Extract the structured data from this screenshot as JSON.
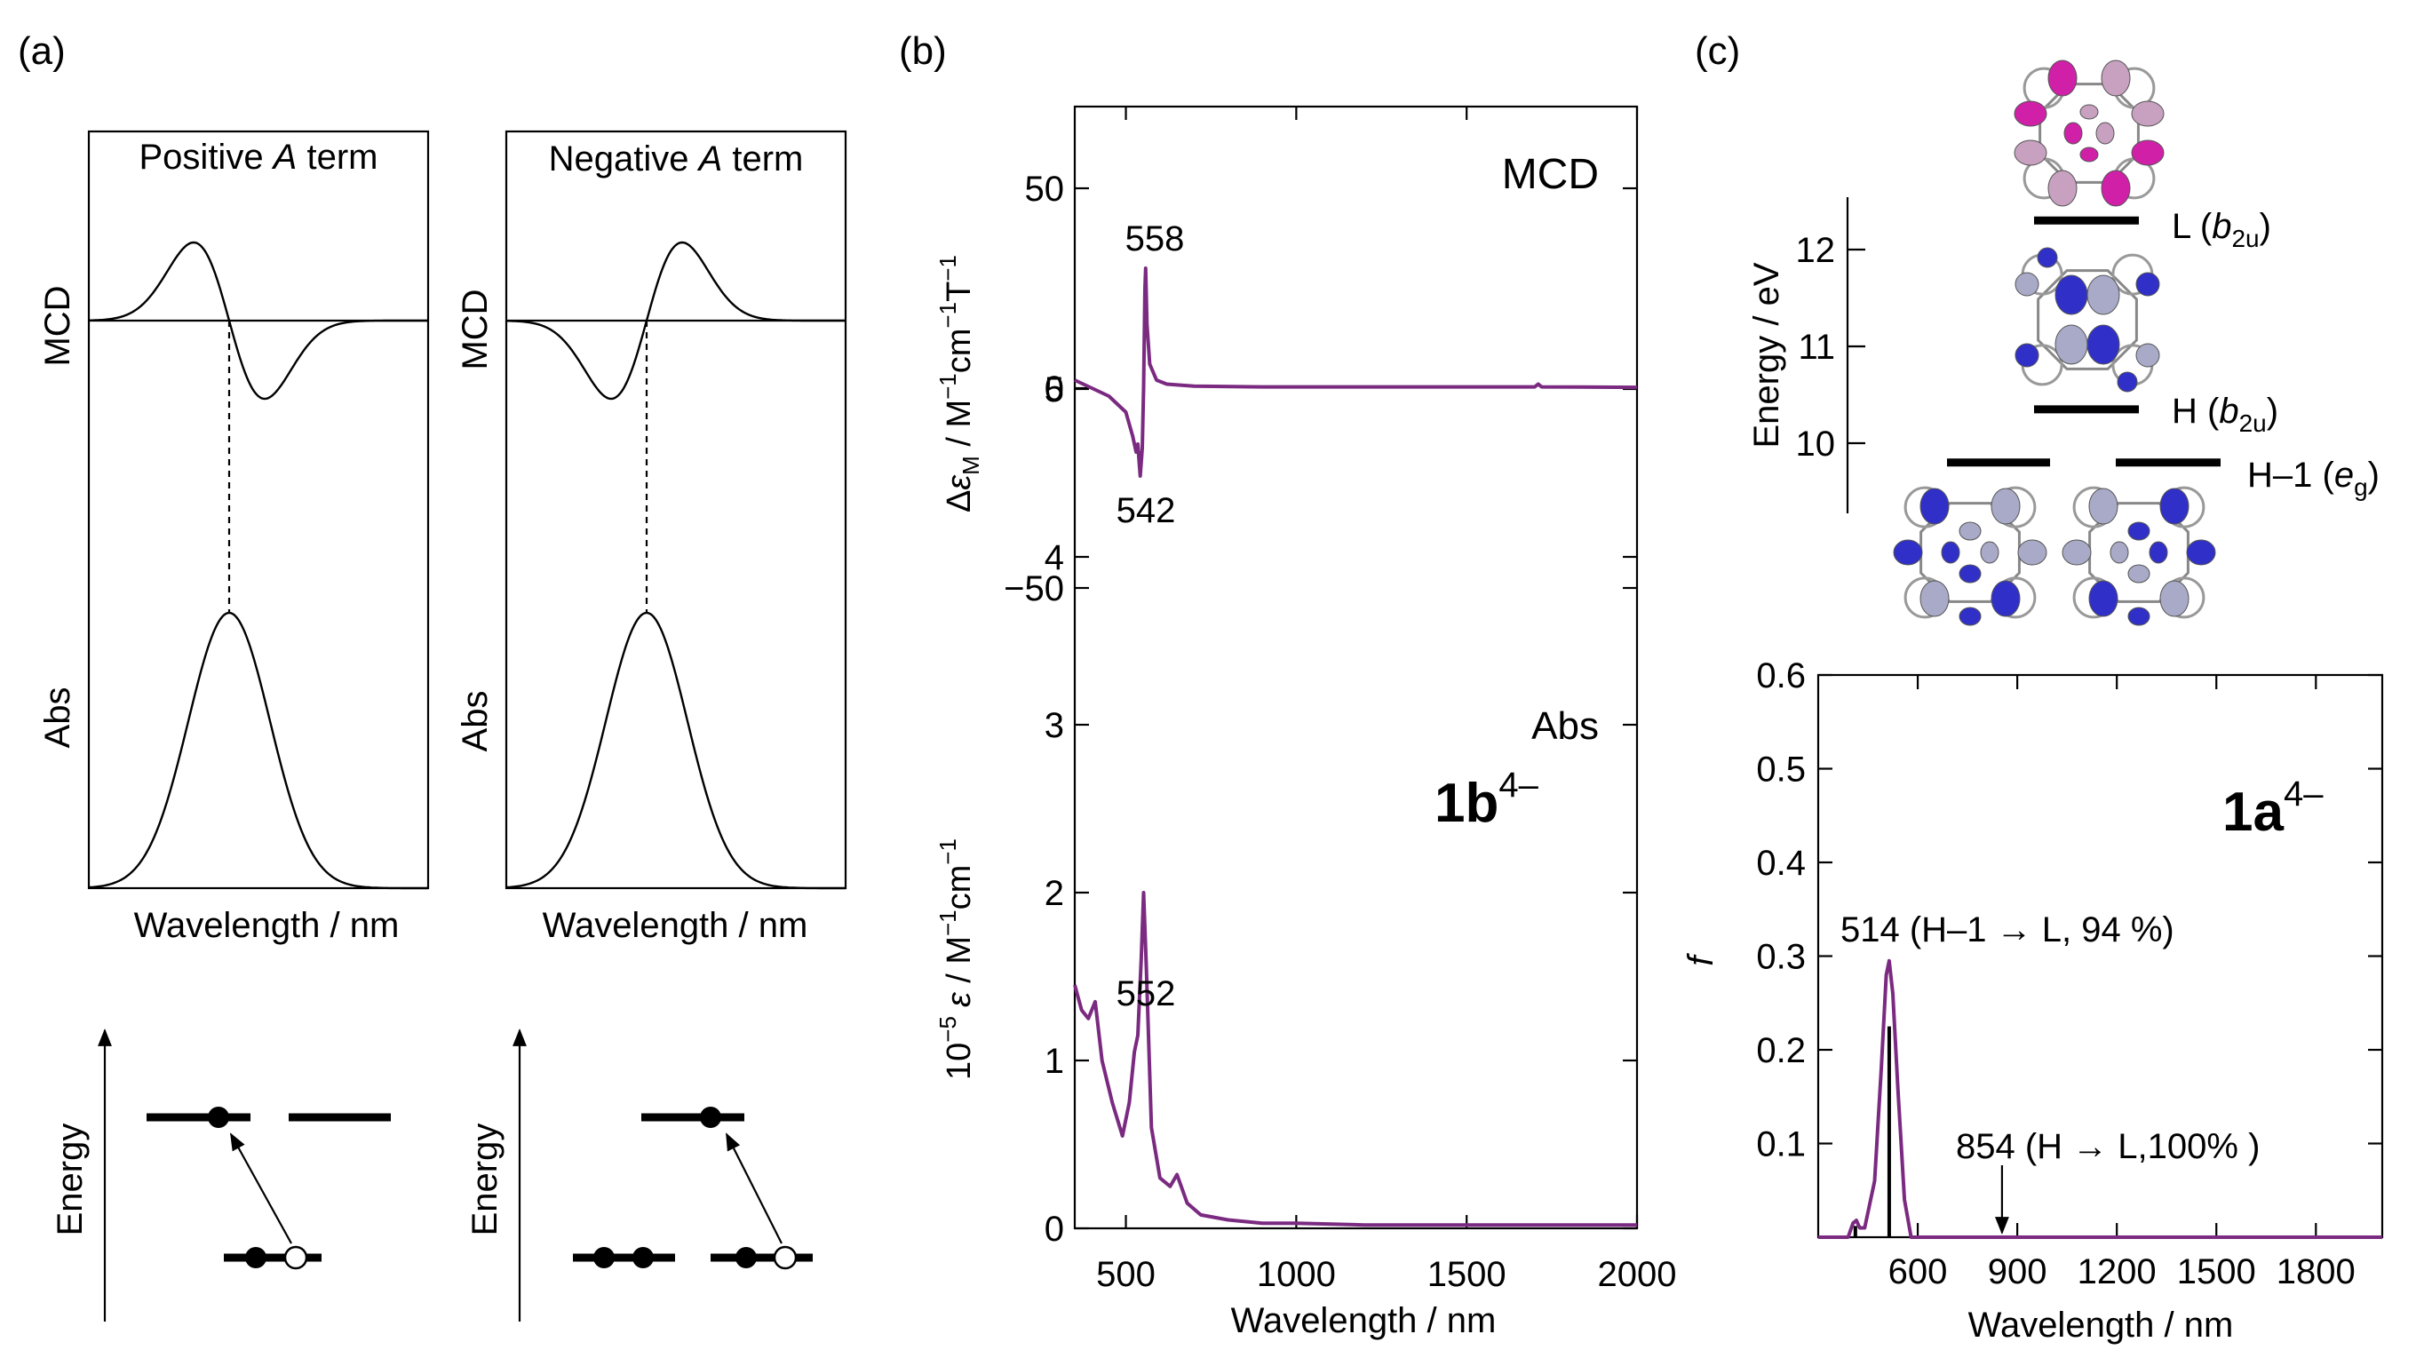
{
  "colors": {
    "spectrum": "#7a2a80",
    "lobe_pink": "#d020a8",
    "lobe_lightpink": "#c8a0c0",
    "lobe_blue": "#3030c8",
    "lobe_grey": "#a8aac8"
  },
  "panel_a": {
    "label": "(a)",
    "pos_title_pre": "Positive ",
    "neg_title_pre": "Negative ",
    "title_term_letter": "A",
    "title_post": " term",
    "ylabel_mcd": "MCD",
    "ylabel_abs": "Abs",
    "xlabel": "Wavelength / nm",
    "energy_label": "Energy"
  },
  "panel_b": {
    "label": "(b)",
    "mcd_label": "MCD",
    "abs_label": "Abs",
    "compound": "1b",
    "charge": "4–",
    "xlabel": "Wavelength / nm",
    "ylabel_mcd": "ΔεM / M⁻¹cm⁻¹T⁻¹",
    "ylabel_mcd_delta": "Δ",
    "ylabel_mcd_eps": "ε",
    "ylabel_mcd_sub": "M",
    "ylabel_mcd_rest": " / M",
    "ylabel_mcd_sup1": "−1",
    "ylabel_mcd_cm": "cm",
    "ylabel_mcd_sup2": "−1",
    "ylabel_mcd_T": "T",
    "ylabel_mcd_sup3": "−1",
    "ylabel_abs_pre": "10",
    "ylabel_abs_exp": "−5",
    "ylabel_abs_eps": "ε",
    "ylabel_abs_rest": " / M",
    "ylabel_abs_sup1": "−1",
    "ylabel_abs_cm": "cm",
    "ylabel_abs_sup2": "−1",
    "peak_558": "558",
    "peak_542": "542",
    "peak_552": "552"
  },
  "panel_c": {
    "label": "(c)",
    "energy_ylabel": "Energy / eV",
    "energy_ticks": [
      "12",
      "11",
      "10"
    ],
    "L_label": "L (",
    "L_sym": "b",
    "L_sub": "2u",
    "H_label": "H (",
    "H_sym": "b",
    "H_sub": "2u",
    "H1_label": "H–1 (",
    "H1_sym": "e",
    "H1_sub": "g",
    "close_paren": ")",
    "compound": "1a",
    "charge": "4–",
    "ylabel": "f",
    "xlabel": "Wavelength / nm",
    "annot_514": "514 (H–1 → L, 94 %)",
    "annot_854": "854 (H → L,100% )"
  },
  "chart_data": [
    {
      "type": "line",
      "title": "Positive A term",
      "xlabel": "Wavelength / nm",
      "ylabel": "MCD / Abs",
      "series": [
        {
          "name": "MCD",
          "shape": "derivative, positive lobe at shorter wavelength"
        },
        {
          "name": "Abs",
          "shape": "gaussian band"
        }
      ]
    },
    {
      "type": "line",
      "title": "Negative A term",
      "xlabel": "Wavelength / nm",
      "ylabel": "MCD / Abs",
      "series": [
        {
          "name": "MCD",
          "shape": "derivative, negative lobe at shorter wavelength"
        },
        {
          "name": "Abs",
          "shape": "gaussian band"
        }
      ]
    },
    {
      "type": "line",
      "title": "MCD",
      "xlabel": "Wavelength / nm",
      "ylabel": "ΔεM / M⁻¹cm⁻¹T⁻¹",
      "xlim": [
        350,
        2000
      ],
      "ylim": [
        -60,
        70
      ],
      "x_ticks": [
        500,
        1000,
        1500,
        2000
      ],
      "y_ticks": [
        50,
        0,
        -50
      ],
      "tick_labels_y": [
        "50",
        "0",
        "−50"
      ],
      "x": [
        350,
        400,
        450,
        500,
        520,
        530,
        535,
        542,
        548,
        552,
        556,
        558,
        562,
        570,
        590,
        620,
        700,
        900,
        1200,
        1500,
        1700,
        1710,
        1720,
        2000
      ],
      "values": [
        2,
        0,
        -2,
        -6,
        -12,
        -16,
        -14,
        -22,
        -15,
        0,
        25,
        30,
        16,
        6,
        2,
        1,
        0.5,
        0.3,
        0.3,
        0.3,
        0.3,
        1,
        0.3,
        0.2
      ],
      "annotations": [
        "558",
        "542"
      ]
    },
    {
      "type": "line",
      "title": "Abs",
      "xlabel": "Wavelength / nm",
      "ylabel": "10⁻⁵ ε / M⁻¹cm⁻¹",
      "xlim": [
        350,
        2000
      ],
      "ylim": [
        0,
        5
      ],
      "x_ticks": [
        500,
        1000,
        1500,
        2000
      ],
      "tick_labels_x": [
        "500",
        "1000",
        "1500",
        "2000"
      ],
      "y_ticks": [
        0,
        1,
        2,
        3,
        4,
        5
      ],
      "tick_labels_y": [
        "0",
        "1",
        "2",
        "3",
        "4",
        "5"
      ],
      "x": [
        350,
        370,
        390,
        410,
        430,
        460,
        490,
        510,
        525,
        535,
        545,
        552,
        560,
        575,
        600,
        630,
        650,
        680,
        720,
        800,
        900,
        1000,
        1200,
        1400,
        1600,
        1800,
        2000
      ],
      "values": [
        1.45,
        1.3,
        1.25,
        1.35,
        1.0,
        0.75,
        0.55,
        0.75,
        1.05,
        1.15,
        1.6,
        2.0,
        1.55,
        0.6,
        0.3,
        0.25,
        0.32,
        0.15,
        0.08,
        0.05,
        0.03,
        0.03,
        0.02,
        0.02,
        0.02,
        0.02,
        0.02
      ],
      "annotations": [
        "552"
      ],
      "legend": "1b4–"
    },
    {
      "type": "line",
      "title": "1a4–",
      "xlabel": "Wavelength / nm",
      "ylabel": "f",
      "xlim": [
        300,
        2000
      ],
      "ylim": [
        0,
        0.6
      ],
      "x_ticks": [
        600,
        900,
        1200,
        1500,
        1800
      ],
      "tick_labels_x": [
        "600",
        "900",
        "1200",
        "1500",
        "1800"
      ],
      "y_ticks": [
        0.1,
        0.2,
        0.3,
        0.4,
        0.5,
        0.6
      ],
      "tick_labels_y": [
        "0.1",
        "0.2",
        "0.3",
        "0.4",
        "0.5",
        "0.6"
      ],
      "x": [
        300,
        390,
        405,
        415,
        425,
        440,
        470,
        490,
        505,
        514,
        525,
        540,
        560,
        580,
        700,
        1000,
        1500,
        2000
      ],
      "values": [
        0,
        0,
        0.015,
        0.018,
        0.01,
        0.01,
        0.06,
        0.18,
        0.28,
        0.295,
        0.26,
        0.16,
        0.04,
        0,
        0,
        0,
        0,
        0
      ],
      "sticks": [
        {
          "x": 412,
          "f": 0.012
        },
        {
          "x": 514,
          "f": 0.225
        },
        {
          "x": 854,
          "f": 0.0
        }
      ],
      "annotations": [
        "514 (H–1 → L, 94 %)",
        "854 (H → L,100% )"
      ]
    },
    {
      "type": "scatter",
      "title": "Orbital energy levels",
      "ylabel": "Energy / eV",
      "ylim": [
        9.4,
        12.6
      ],
      "y_ticks": [
        12,
        11,
        10
      ],
      "levels": [
        {
          "name": "L (b2u)",
          "energy": 12.3
        },
        {
          "name": "H (b2u)",
          "energy": 10.35
        },
        {
          "name": "H–1 (eg)",
          "energy": 9.8,
          "degenerate": 2
        }
      ]
    }
  ]
}
